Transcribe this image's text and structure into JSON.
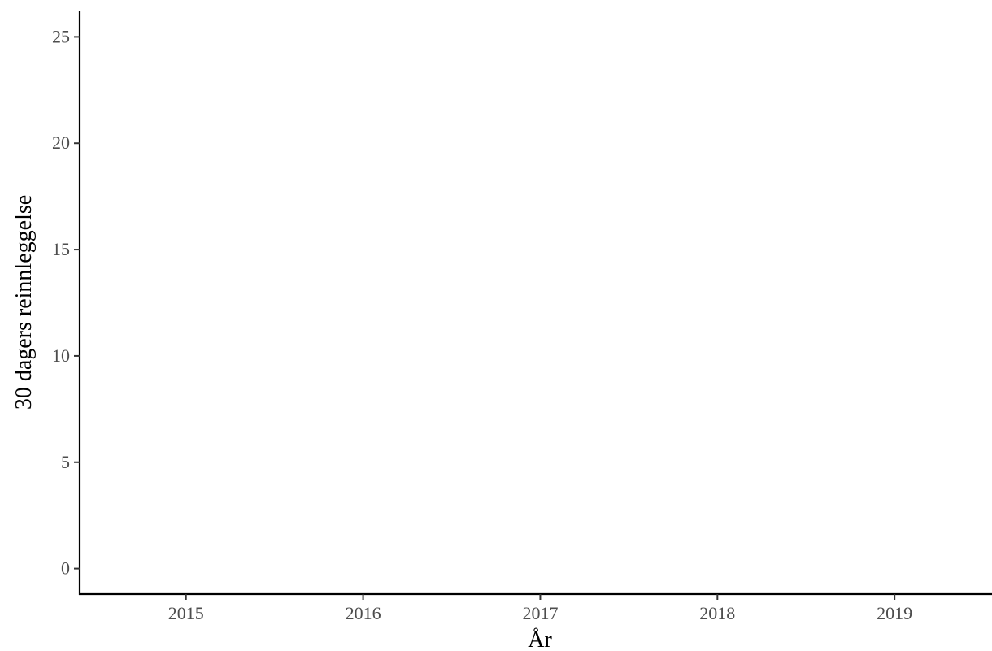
{
  "chart_data": {
    "type": "line",
    "title": "",
    "xlabel": "År",
    "ylabel": "30 dagers reinnleggelse",
    "x_ticks": [
      "2015",
      "2016",
      "2017",
      "2018",
      "2019"
    ],
    "y_ticks": [
      "0",
      "5",
      "10",
      "15",
      "20",
      "25"
    ],
    "xlim": [
      2014.4,
      2019.55
    ],
    "ylim": [
      -1.2,
      26.2
    ],
    "series": [],
    "grid": false,
    "legend": "none"
  }
}
